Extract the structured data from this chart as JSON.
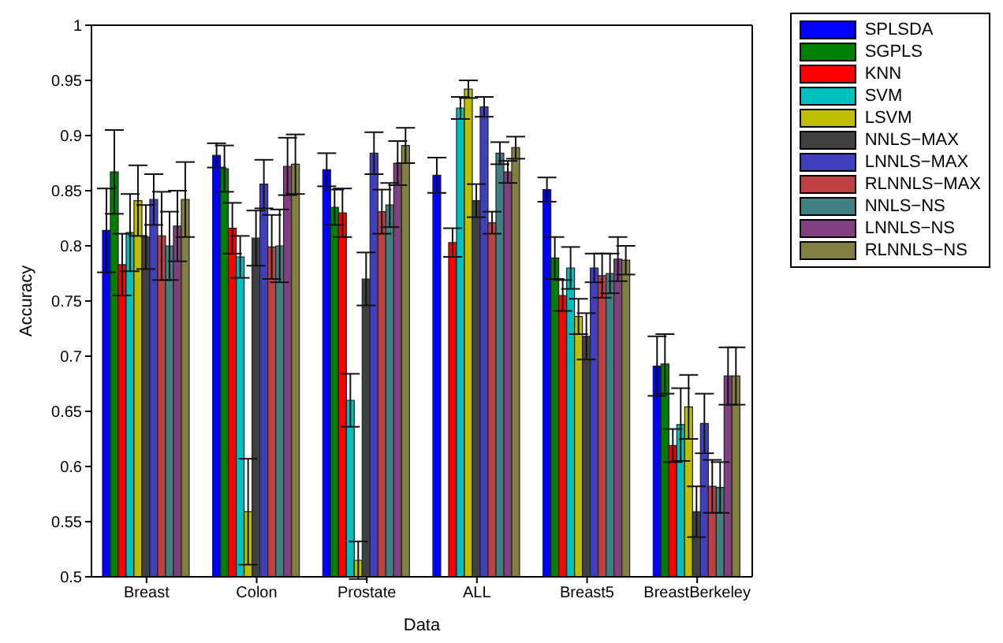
{
  "chart_data": {
    "type": "bar",
    "xlabel": "Data",
    "ylabel": "Accuracy",
    "categories": [
      "Breast",
      "Colon",
      "Prostate",
      "ALL",
      "Breast5",
      "BreastBerkeley"
    ],
    "ylim": [
      0.5,
      1
    ],
    "yticks": [
      0.5,
      0.55,
      0.6,
      0.65,
      0.7,
      0.75,
      0.8,
      0.85,
      0.9,
      0.95,
      1
    ],
    "legend": "top right",
    "grid": false,
    "series": [
      {
        "name": "SPLSDA",
        "color": "#0000ff",
        "values": [
          0.814,
          0.882,
          0.869,
          0.864,
          0.851,
          0.691
        ],
        "errors": [
          0.038,
          0.011,
          0.015,
          0.016,
          0.011,
          0.027
        ]
      },
      {
        "name": "SGPLS",
        "color": "#008000",
        "values": [
          0.867,
          0.87,
          0.835,
          null,
          0.789,
          0.693
        ],
        "errors": [
          0.038,
          0.021,
          0.016,
          null,
          0.019,
          0.027
        ]
      },
      {
        "name": "KNN",
        "color": "#ff0000",
        "values": [
          0.783,
          0.816,
          0.83,
          0.803,
          0.755,
          0.619
        ],
        "errors": [
          0.028,
          0.023,
          0.022,
          0.013,
          0.014,
          0.015
        ]
      },
      {
        "name": "SVM",
        "color": "#00bfbf",
        "values": [
          0.812,
          0.79,
          0.66,
          0.925,
          0.78,
          0.638
        ],
        "errors": [
          0.035,
          0.019,
          0.024,
          0.01,
          0.019,
          0.033
        ]
      },
      {
        "name": "LSVM",
        "color": "#bfbf00",
        "values": [
          0.841,
          0.559,
          0.515,
          0.942,
          0.736,
          0.654
        ],
        "errors": [
          0.032,
          0.048,
          0.017,
          0.008,
          0.016,
          0.029
        ]
      },
      {
        "name": "NNLS−MAX",
        "color": "#404040",
        "values": [
          0.808,
          0.807,
          0.77,
          0.841,
          0.718,
          0.559
        ],
        "errors": [
          0.029,
          0.025,
          0.024,
          0.015,
          0.021,
          0.023
        ]
      },
      {
        "name": "LNNLS−MAX",
        "color": "#4040bf",
        "values": [
          0.842,
          0.856,
          0.884,
          0.926,
          0.78,
          0.639
        ],
        "errors": [
          0.023,
          0.022,
          0.019,
          0.009,
          0.013,
          0.027
        ]
      },
      {
        "name": "RLNNLS−MAX",
        "color": "#bf4040",
        "values": [
          0.809,
          0.799,
          0.831,
          0.821,
          0.773,
          0.582
        ],
        "errors": [
          0.04,
          0.029,
          0.02,
          0.01,
          0.02,
          0.024
        ]
      },
      {
        "name": "NNLS−NS",
        "color": "#408080",
        "values": [
          0.8,
          0.8,
          0.837,
          0.884,
          0.775,
          0.581
        ],
        "errors": [
          0.031,
          0.033,
          0.02,
          0.01,
          0.018,
          0.023
        ]
      },
      {
        "name": "LNNLS−NS",
        "color": "#804080",
        "values": [
          0.818,
          0.872,
          0.875,
          0.867,
          0.788,
          0.682
        ],
        "errors": [
          0.032,
          0.026,
          0.02,
          0.01,
          0.02,
          0.026
        ]
      },
      {
        "name": "RLNNLS−NS",
        "color": "#808040",
        "values": [
          0.842,
          0.874,
          0.891,
          0.889,
          0.787,
          0.682
        ],
        "errors": [
          0.034,
          0.027,
          0.016,
          0.01,
          0.013,
          0.026
        ]
      }
    ]
  }
}
